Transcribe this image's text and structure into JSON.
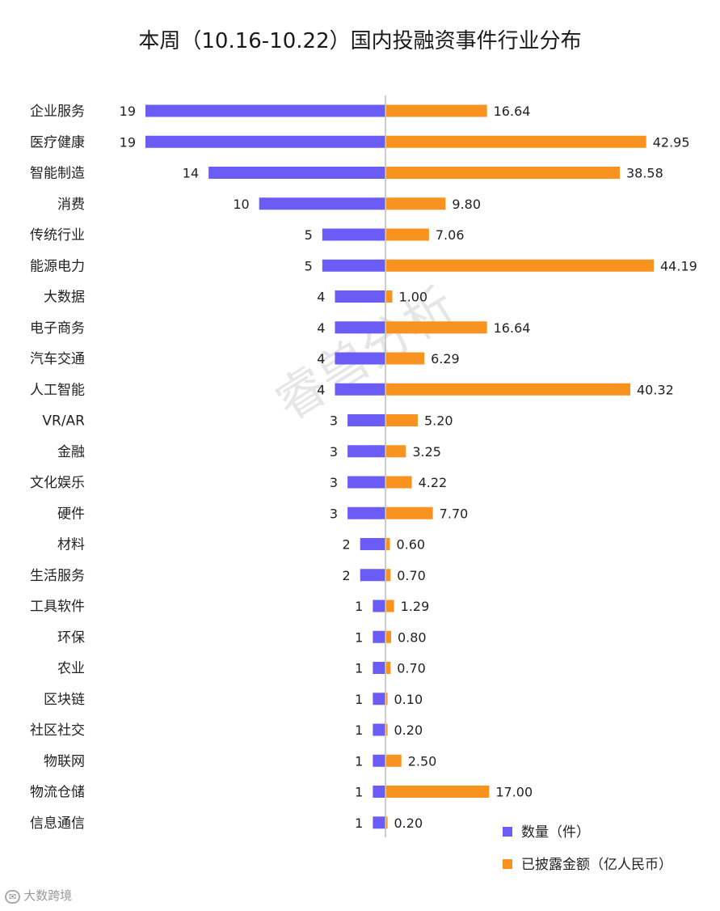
{
  "title": "本周（10.16-10.22）国内投融资事件行业分布",
  "watermark": "睿兽分析",
  "footer": {
    "logo_text": "大数跨境"
  },
  "colors": {
    "count": "#6B5CF6",
    "amount": "#F7931E",
    "axis": "#bbbbbb"
  },
  "chart_data": {
    "type": "bar",
    "orientation": "horizontal-diverging",
    "categories": [
      "企业服务",
      "医疗健康",
      "智能制造",
      "消费",
      "传统行业",
      "能源电力",
      "大数据",
      "电子商务",
      "汽车交通",
      "人工智能",
      "VR/AR",
      "金融",
      "文化娱乐",
      "硬件",
      "材料",
      "生活服务",
      "工具软件",
      "环保",
      "农业",
      "区块链",
      "社区社交",
      "物联网",
      "物流仓储",
      "信息通信"
    ],
    "series": [
      {
        "name": "数量（件）",
        "direction": "left",
        "values": [
          19,
          19,
          14,
          10,
          5,
          5,
          4,
          4,
          4,
          4,
          3,
          3,
          3,
          3,
          2,
          2,
          1,
          1,
          1,
          1,
          1,
          1,
          1,
          1
        ],
        "labels": [
          "19",
          "19",
          "14",
          "10",
          "5",
          "5",
          "4",
          "4",
          "4",
          "4",
          "3",
          "3",
          "3",
          "3",
          "2",
          "2",
          "1",
          "1",
          "1",
          "1",
          "1",
          "1",
          "1",
          "1"
        ]
      },
      {
        "name": "已披露金额（亿人民币）",
        "direction": "right",
        "values": [
          16.64,
          42.95,
          38.58,
          9.8,
          7.06,
          44.19,
          1.0,
          16.64,
          6.29,
          40.32,
          5.2,
          3.25,
          4.22,
          7.7,
          0.6,
          0.7,
          1.29,
          0.8,
          0.7,
          0.1,
          0.2,
          2.5,
          17.0,
          0.2
        ],
        "labels": [
          "16.64",
          "42.95",
          "38.58",
          "9.80",
          "7.06",
          "44.19",
          "1.00",
          "16.64",
          "6.29",
          "40.32",
          "5.20",
          "3.25",
          "4.22",
          "7.70",
          "0.60",
          "0.70",
          "1.29",
          "0.80",
          "0.70",
          "0.10",
          "0.20",
          "2.50",
          "17.00",
          "0.20"
        ]
      }
    ],
    "legend_position": "bottom-right",
    "grid": false
  }
}
